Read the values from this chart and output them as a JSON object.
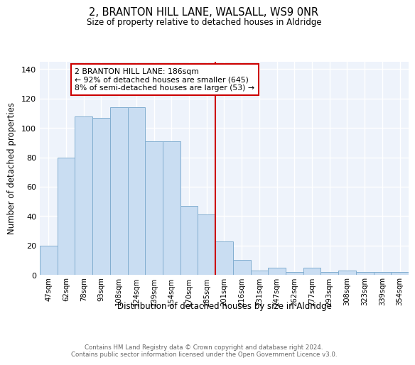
{
  "title1": "2, BRANTON HILL LANE, WALSALL, WS9 0NR",
  "title2": "Size of property relative to detached houses in Aldridge",
  "xlabel": "Distribution of detached houses by size in Aldridge",
  "ylabel": "Number of detached properties",
  "categories": [
    "47sqm",
    "62sqm",
    "78sqm",
    "93sqm",
    "108sqm",
    "124sqm",
    "139sqm",
    "154sqm",
    "170sqm",
    "185sqm",
    "201sqm",
    "216sqm",
    "231sqm",
    "247sqm",
    "262sqm",
    "277sqm",
    "293sqm",
    "308sqm",
    "323sqm",
    "339sqm",
    "354sqm"
  ],
  "bar_values": [
    20,
    80,
    108,
    107,
    114,
    114,
    91,
    91,
    47,
    41,
    23,
    10,
    3,
    5,
    2,
    5,
    2,
    3,
    2,
    2,
    2
  ],
  "bar_color": "#c9ddf2",
  "bar_edge_color": "#82aed0",
  "vline_color": "#cc0000",
  "annotation_text": "2 BRANTON HILL LANE: 186sqm\n← 92% of detached houses are smaller (645)\n8% of semi-detached houses are larger (53) →",
  "annotation_box_facecolor": "#ffffff",
  "annotation_box_edgecolor": "#cc0000",
  "background_color": "#eef3fb",
  "grid_color": "#ffffff",
  "footer_text": "Contains HM Land Registry data © Crown copyright and database right 2024.\nContains public sector information licensed under the Open Government Licence v3.0.",
  "ylim": [
    0,
    145
  ],
  "yticks": [
    0,
    20,
    40,
    60,
    80,
    100,
    120,
    140
  ]
}
